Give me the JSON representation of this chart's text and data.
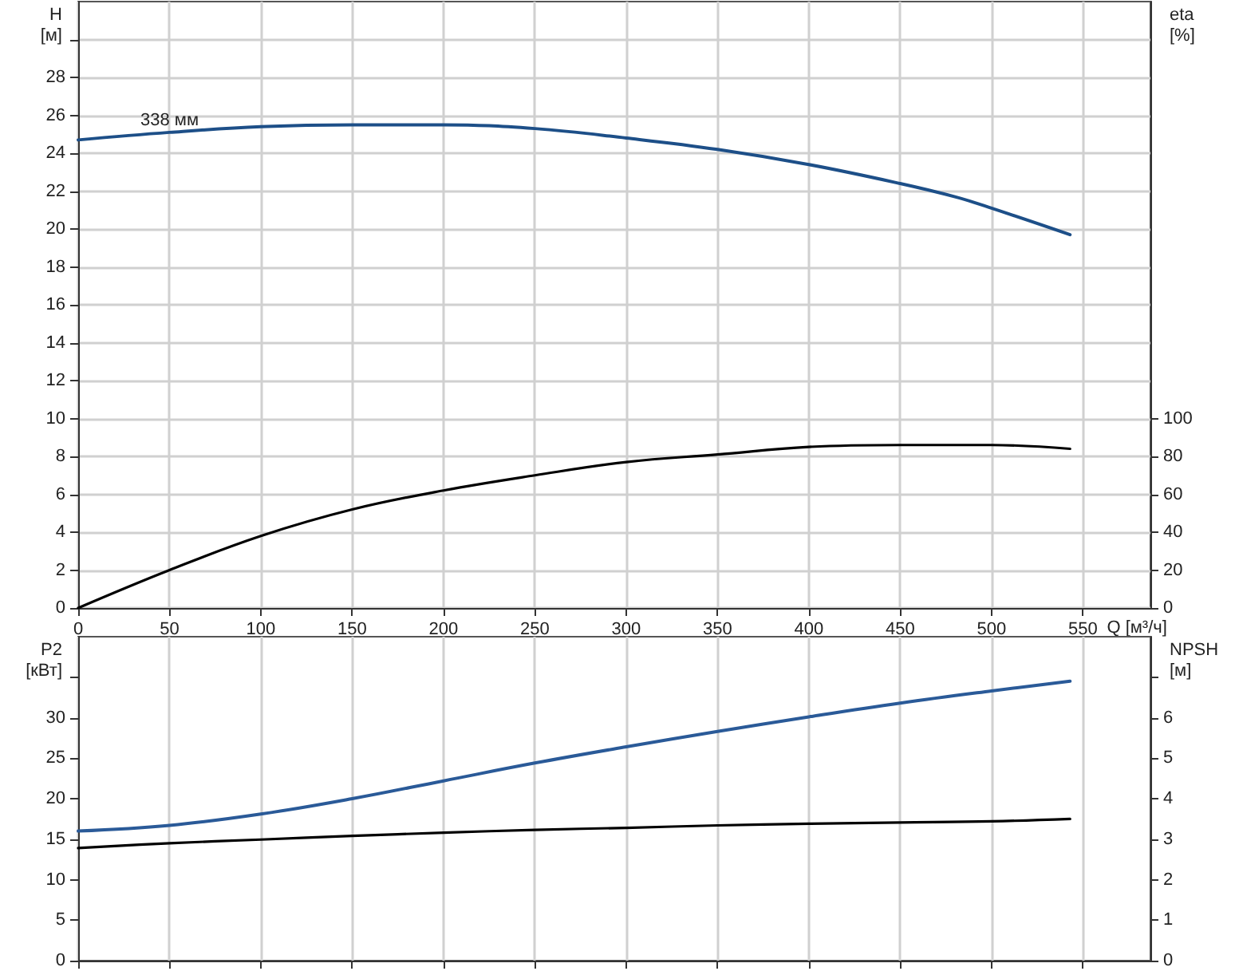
{
  "chart_data": [
    {
      "type": "line",
      "xlabel": "Q [м³/ч]",
      "ylabel": "H\n[м]",
      "y2label": "eta\n[%]",
      "x": [
        0,
        50,
        100,
        150,
        200,
        250,
        300,
        350,
        400,
        450,
        480,
        500,
        543
      ],
      "series": [
        {
          "color": "#1d4f88",
          "values": [
            24.7,
            25.1,
            25.4,
            25.5,
            25.5,
            25.3,
            24.8,
            24.2,
            23.4,
            22.4,
            21.7,
            21.1,
            19.7
          ]
        },
        {
          "color": "#000000",
          "axis": "y2",
          "values": [
            0,
            20,
            38,
            52,
            62,
            70,
            77,
            81,
            85,
            86,
            86,
            86,
            84
          ]
        }
      ],
      "annotations": [
        {
          "text": "338 мм",
          "x": 50,
          "y": 25.1
        }
      ],
      "xlim": [
        0,
        587
      ],
      "xticks": [
        0,
        50,
        100,
        150,
        200,
        250,
        300,
        350,
        400,
        450,
        500,
        550
      ],
      "ylim": [
        0,
        32
      ],
      "yticks": [
        0,
        2,
        4,
        6,
        8,
        10,
        12,
        14,
        16,
        18,
        20,
        22,
        24,
        26,
        28,
        {
          "value": 30,
          "label": null
        }
      ],
      "y2lim": [
        0,
        320
      ],
      "y2ticks": [
        0,
        20,
        40,
        60,
        80,
        100
      ],
      "grid": true,
      "marker": "none",
      "line_style": "solid"
    },
    {
      "type": "line",
      "ylabel": "P2\n[кВт]",
      "y2label": "NPSH\n[м]",
      "x": [
        0,
        50,
        100,
        150,
        200,
        250,
        300,
        350,
        400,
        450,
        500,
        543
      ],
      "series": [
        {
          "color": "#2a5a98",
          "values": [
            16,
            16.7,
            18.1,
            20,
            22.2,
            24.4,
            26.4,
            28.3,
            30.1,
            31.8,
            33.3,
            34.5
          ]
        },
        {
          "color": "#000000",
          "axis": "y2",
          "values": [
            2.78,
            2.9,
            2.99,
            3.08,
            3.16,
            3.23,
            3.28,
            3.34,
            3.38,
            3.41,
            3.44,
            3.5
          ]
        }
      ],
      "xlim": [
        0,
        587
      ],
      "xticks": [
        0,
        50,
        100,
        150,
        200,
        250,
        300,
        350,
        400,
        450,
        500,
        550
      ],
      "ylim": [
        0,
        40
      ],
      "yticks": [
        0,
        5,
        10,
        15,
        20,
        25,
        30,
        {
          "value": 35,
          "label": null
        }
      ],
      "y2lim": [
        0,
        8
      ],
      "y2ticks": [
        0,
        1,
        2,
        3,
        4,
        5,
        6,
        {
          "value": 7,
          "label": null
        }
      ],
      "tick_labels": "y",
      "grid": "x",
      "marker": "none",
      "line_style": "solid"
    }
  ]
}
